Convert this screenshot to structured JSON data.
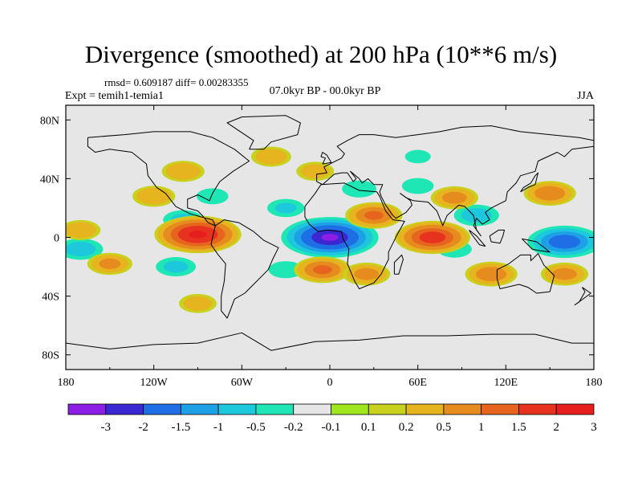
{
  "chart_data": {
    "type": "heatmap",
    "title": "Divergence (smoothed) at 200 hPa (10**6 m/s)",
    "stats": "rmsd= 0.609187 diff= 0.00283355",
    "experiment": "Expt = temih1-temia1",
    "period": "07.0kyr BP - 00.0kyr BP",
    "season": "JJA",
    "xlim": [
      -180,
      180
    ],
    "ylim": [
      -90,
      90
    ],
    "x_ticks": [
      {
        "value": -180,
        "label": "180"
      },
      {
        "value": -120,
        "label": "120W"
      },
      {
        "value": -60,
        "label": "60W"
      },
      {
        "value": 0,
        "label": "0"
      },
      {
        "value": 60,
        "label": "60E"
      },
      {
        "value": 120,
        "label": "120E"
      },
      {
        "value": 180,
        "label": "180"
      }
    ],
    "y_ticks": [
      {
        "value": 80,
        "label": "80N"
      },
      {
        "value": 40,
        "label": "40N"
      },
      {
        "value": 0,
        "label": "0"
      },
      {
        "value": -40,
        "label": "40S"
      },
      {
        "value": -80,
        "label": "80S"
      }
    ],
    "colorbar": {
      "colors": [
        "#8c1ee6",
        "#3c28d2",
        "#1e6ee6",
        "#1ea0e6",
        "#1ec8dc",
        "#1ee6b4",
        "#e6e6e6",
        "#a0e61e",
        "#c8d21e",
        "#e6b41e",
        "#e68c1e",
        "#e6641e",
        "#e6321e",
        "#e61e1e"
      ],
      "labels": [
        "-3",
        "-2",
        "-1.5",
        "-1",
        "-0.5",
        "-0.2",
        "-0.1",
        "0.1",
        "0.2",
        "0.5",
        "1",
        "1.5",
        "2",
        "3"
      ]
    },
    "anomalies": [
      {
        "lon": 0,
        "lat": 0,
        "value": -3.2
      },
      {
        "lon": 160,
        "lat": -3,
        "value": -2.2
      },
      {
        "lon": -170,
        "lat": -8,
        "value": -1.0
      },
      {
        "lon": -100,
        "lat": 12,
        "value": -0.8
      },
      {
        "lon": -105,
        "lat": -20,
        "value": -0.8
      },
      {
        "lon": -30,
        "lat": 20,
        "value": -0.7
      },
      {
        "lon": 20,
        "lat": 33,
        "value": -0.6
      },
      {
        "lon": 100,
        "lat": 15,
        "value": -1.0
      },
      {
        "lon": 85,
        "lat": -8,
        "value": -0.6
      },
      {
        "lon": 60,
        "lat": 35,
        "value": -0.5
      },
      {
        "lon": -30,
        "lat": -22,
        "value": -0.6
      },
      {
        "lon": -80,
        "lat": 28,
        "value": -0.5
      },
      {
        "lon": 30,
        "lat": 15,
        "value": 1.2
      },
      {
        "lon": -90,
        "lat": 2,
        "value": 2.5
      },
      {
        "lon": 70,
        "lat": 0,
        "value": 2.0
      },
      {
        "lon": -5,
        "lat": -22,
        "value": 1.2
      },
      {
        "lon": 110,
        "lat": -25,
        "value": 1.0
      },
      {
        "lon": 160,
        "lat": -25,
        "value": 0.8
      },
      {
        "lon": -150,
        "lat": -18,
        "value": 0.7
      },
      {
        "lon": -120,
        "lat": 28,
        "value": 0.6
      },
      {
        "lon": 85,
        "lat": 27,
        "value": 0.8
      },
      {
        "lon": 25,
        "lat": -25,
        "value": 0.8
      },
      {
        "lon": -40,
        "lat": 55,
        "value": 0.5
      },
      {
        "lon": -10,
        "lat": 45,
        "value": 0.4
      },
      {
        "lon": -100,
        "lat": 45,
        "value": 0.6
      },
      {
        "lon": 150,
        "lat": 30,
        "value": 1.0
      },
      {
        "lon": -170,
        "lat": 5,
        "value": 0.5
      },
      {
        "lon": 60,
        "lat": 55,
        "value": -0.3
      },
      {
        "lon": 0,
        "lat": -75,
        "value": -0.2
      },
      {
        "lon": -90,
        "lat": -45,
        "value": 0.4
      }
    ]
  }
}
